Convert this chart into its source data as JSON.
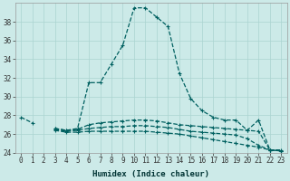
{
  "xlabel": "Humidex (Indice chaleur)",
  "ylabel": "",
  "background_color": "#cceae8",
  "grid_color": "#aad4d0",
  "line_color": "#006060",
  "x_values": [
    0,
    1,
    2,
    3,
    4,
    5,
    6,
    7,
    8,
    9,
    10,
    11,
    12,
    13,
    14,
    15,
    16,
    17,
    18,
    19,
    20,
    21,
    22,
    23
  ],
  "series1": [
    27.8,
    27.2,
    null,
    26.6,
    26.4,
    26.6,
    31.5,
    31.5,
    33.5,
    35.5,
    39.5,
    39.5,
    38.5,
    37.5,
    32.5,
    29.8,
    28.5,
    27.8,
    27.5,
    27.5,
    26.4,
    27.5,
    24.3,
    24.3
  ],
  "series2": [
    null,
    null,
    null,
    26.6,
    26.4,
    26.5,
    27.0,
    27.2,
    27.3,
    27.4,
    27.5,
    27.5,
    27.4,
    27.2,
    27.0,
    26.9,
    26.8,
    26.7,
    26.6,
    26.5,
    26.4,
    26.3,
    24.3,
    24.2
  ],
  "series3": [
    null,
    null,
    null,
    26.5,
    26.3,
    26.4,
    26.6,
    26.7,
    26.8,
    26.8,
    26.9,
    26.9,
    26.8,
    26.7,
    26.5,
    26.3,
    26.2,
    26.1,
    26.0,
    25.9,
    25.5,
    24.8,
    24.3,
    24.2
  ],
  "series4": [
    null,
    null,
    null,
    26.4,
    26.2,
    26.2,
    26.3,
    26.3,
    26.3,
    26.3,
    26.3,
    26.3,
    26.2,
    26.1,
    26.0,
    25.8,
    25.6,
    25.4,
    25.2,
    25.0,
    24.8,
    24.6,
    24.3,
    24.2
  ],
  "ylim": [
    24,
    40
  ],
  "yticks": [
    24,
    26,
    28,
    30,
    32,
    34,
    36,
    38
  ],
  "xticks": [
    0,
    1,
    2,
    3,
    4,
    5,
    6,
    7,
    8,
    9,
    10,
    11,
    12,
    13,
    14,
    15,
    16,
    17,
    18,
    19,
    20,
    21,
    22,
    23
  ],
  "tick_fontsize": 5.5,
  "label_fontsize": 6.5
}
